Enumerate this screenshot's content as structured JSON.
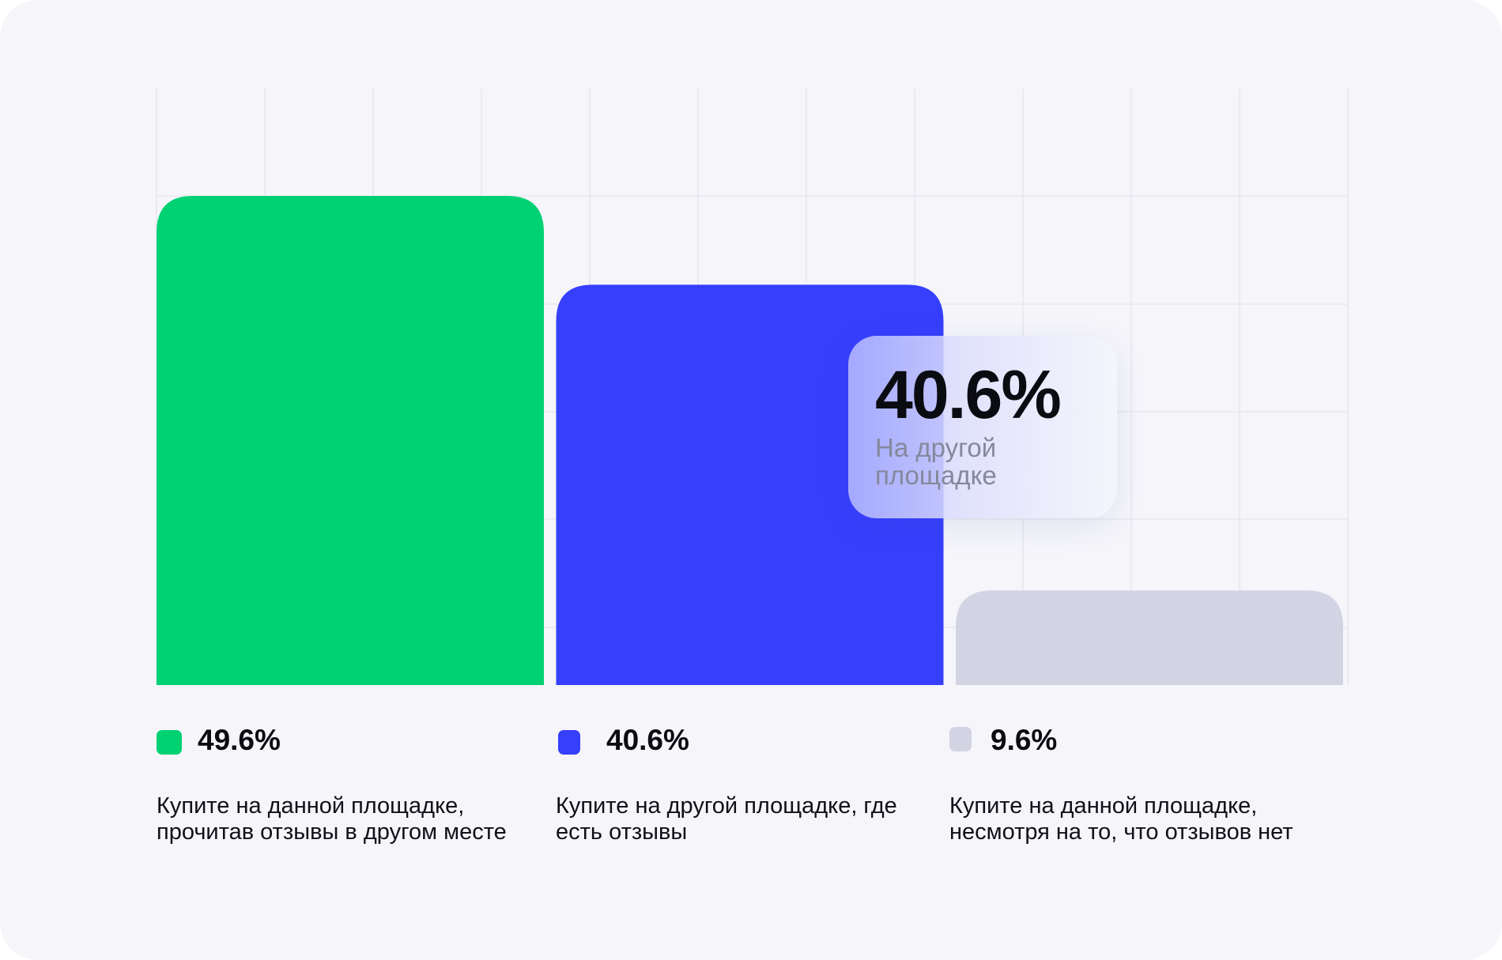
{
  "chart_data": {
    "type": "bar",
    "categories": [
      "Купите на данной площадке, прочитав отзывы в другом месте",
      "Купите на другой площадке, где есть отзывы",
      "Купите на данной площадке, несмотря на то, что отзывов нет"
    ],
    "values": [
      49.6,
      40.6,
      9.6
    ],
    "value_labels": [
      "49.6%",
      "40.6%",
      "9.6%"
    ],
    "colors": [
      "#00d172",
      "#363ffc",
      "#d3d4e3"
    ],
    "ylim": [
      0,
      60
    ],
    "grid": true,
    "tooltip": {
      "value": "40.6%",
      "label": "На другой площадке"
    }
  }
}
